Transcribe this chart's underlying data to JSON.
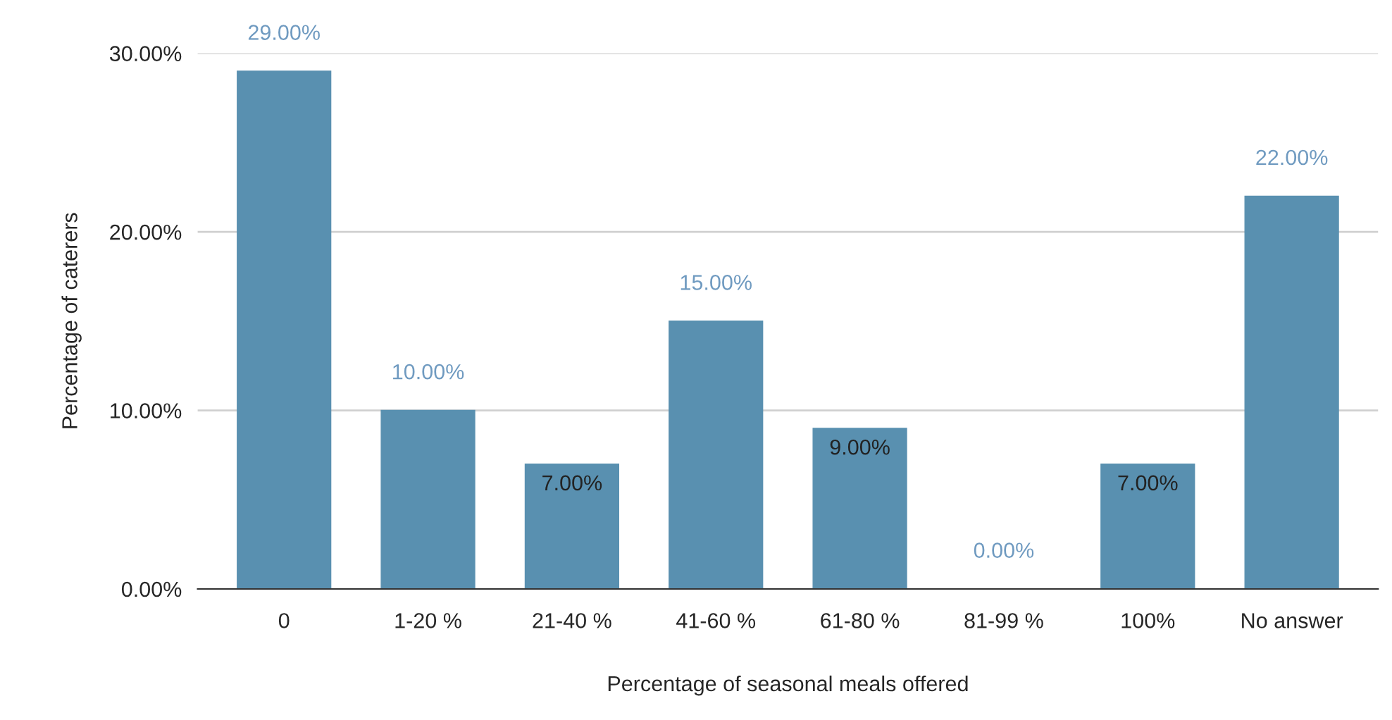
{
  "chart_data": {
    "type": "bar",
    "xlabel": "Percentage of seasonal meals offered",
    "ylabel": "Percentage of caterers",
    "categories": [
      "0",
      "1-20 %",
      "21-40 %",
      "41-60 %",
      "61-80 %",
      "81-99 %",
      "100%",
      "No answer"
    ],
    "values": [
      29,
      10,
      7,
      15,
      9,
      0,
      7,
      22
    ],
    "value_labels": [
      "29.00%",
      "10.00%",
      "7.00%",
      "15.00%",
      "9.00%",
      "0.00%",
      "7.00%",
      "22.00%"
    ],
    "color": "#5990b0",
    "ylim": [
      0,
      30
    ],
    "yticks": [
      {
        "value": 0,
        "label": "0.00%"
      },
      {
        "value": 10,
        "label": "10.00%"
      },
      {
        "value": 20,
        "label": "20.00%"
      },
      {
        "value": 30,
        "label": "30.00%"
      }
    ],
    "grid": "y"
  }
}
